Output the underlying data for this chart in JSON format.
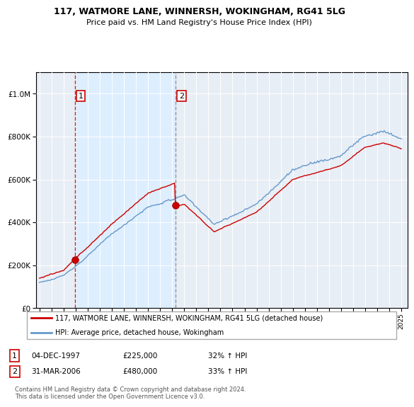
{
  "title1": "117, WATMORE LANE, WINNERSH, WOKINGHAM, RG41 5LG",
  "title2": "Price paid vs. HM Land Registry's House Price Index (HPI)",
  "legend_line1": "117, WATMORE LANE, WINNERSH, WOKINGHAM, RG41 5LG (detached house)",
  "legend_line2": "HPI: Average price, detached house, Wokingham",
  "annotation1_date": "04-DEC-1997",
  "annotation1_price": "£225,000",
  "annotation1_hpi": "32% ↑ HPI",
  "annotation2_date": "31-MAR-2006",
  "annotation2_price": "£480,000",
  "annotation2_hpi": "33% ↑ HPI",
  "footer": "Contains HM Land Registry data © Crown copyright and database right 2024.\nThis data is licensed under the Open Government Licence v3.0.",
  "property_color": "#cc0000",
  "hpi_color": "#6699cc",
  "shade_color": "#ddeeff",
  "plot_bg": "#f0f4f8",
  "ylim": [
    0,
    1100000
  ],
  "yticks": [
    0,
    200000,
    400000,
    600000,
    800000,
    1000000
  ],
  "purchase1_year": 1997.92,
  "purchase1_value": 225000,
  "purchase2_year": 2006.25,
  "purchase2_value": 480000,
  "xmin": 1994.7,
  "xmax": 2025.5
}
